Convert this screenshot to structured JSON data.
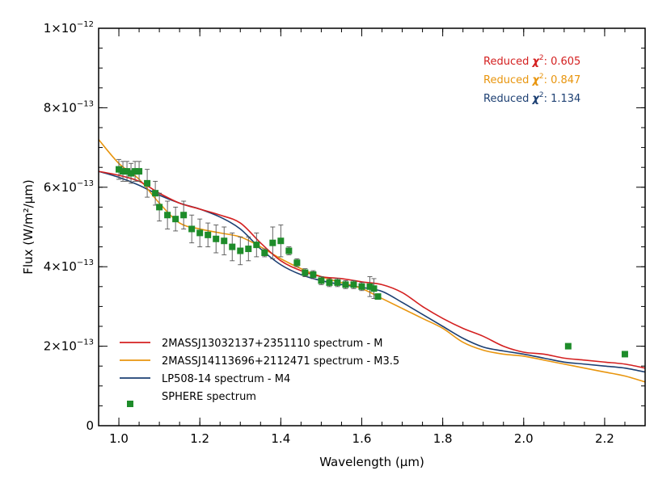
{
  "chart_data": {
    "type": "line",
    "xlabel": "Wavelength (μm)",
    "ylabel": "Flux (W/m²/μm)",
    "xlim": [
      0.95,
      2.3
    ],
    "ylim": [
      0,
      1e-12
    ],
    "x_ticks": [
      1.0,
      1.2,
      1.4,
      1.6,
      1.8,
      2.0,
      2.2
    ],
    "x_tick_labels": [
      "1.0",
      "1.2",
      "1.4",
      "1.6",
      "1.8",
      "2.0",
      "2.2"
    ],
    "y_ticks": [
      0,
      2e-13,
      4e-13,
      6e-13,
      8e-13,
      1e-12
    ],
    "y_tick_labels": [
      {
        "base": "0",
        "exp": ""
      },
      {
        "base": "2×10",
        "exp": "−13"
      },
      {
        "base": "4×10",
        "exp": "−13"
      },
      {
        "base": "6×10",
        "exp": "−13"
      },
      {
        "base": "8×10",
        "exp": "−13"
      },
      {
        "base": "1×10",
        "exp": "−12"
      }
    ],
    "series": [
      {
        "name": "2MASSJ13032137+2351110 spectrum - M",
        "color": "#d42020",
        "x": [
          0.95,
          1.0,
          1.05,
          1.1,
          1.15,
          1.2,
          1.25,
          1.3,
          1.35,
          1.4,
          1.45,
          1.5,
          1.55,
          1.6,
          1.65,
          1.7,
          1.75,
          1.8,
          1.85,
          1.9,
          1.95,
          2.0,
          2.05,
          2.1,
          2.15,
          2.2,
          2.25,
          2.3
        ],
        "values": [
          6.4e-13,
          6.3e-13,
          6.15e-13,
          5.85e-13,
          5.6e-13,
          5.45e-13,
          5.3e-13,
          5.1e-13,
          4.6e-13,
          4.15e-13,
          3.9e-13,
          3.75e-13,
          3.7e-13,
          3.62e-13,
          3.55e-13,
          3.35e-13,
          3e-13,
          2.7e-13,
          2.45e-13,
          2.25e-13,
          2e-13,
          1.85e-13,
          1.8e-13,
          1.7e-13,
          1.65e-13,
          1.6e-13,
          1.55e-13,
          1.45e-13
        ]
      },
      {
        "name": "2MASSJ14113696+2112471 spectrum - M3.5",
        "color": "#e8950e",
        "x": [
          0.95,
          1.0,
          1.05,
          1.1,
          1.15,
          1.2,
          1.25,
          1.3,
          1.35,
          1.4,
          1.45,
          1.5,
          1.55,
          1.6,
          1.65,
          1.7,
          1.75,
          1.8,
          1.85,
          1.9,
          1.95,
          2.0,
          2.05,
          2.1,
          2.15,
          2.2,
          2.25,
          2.3
        ],
        "values": [
          7.2e-13,
          6.6e-13,
          6.2e-13,
          5.6e-13,
          5.1e-13,
          4.95e-13,
          4.85e-13,
          4.75e-13,
          4.5e-13,
          4.2e-13,
          3.95e-13,
          3.75e-13,
          3.6e-13,
          3.45e-13,
          3.2e-13,
          2.95e-13,
          2.7e-13,
          2.45e-13,
          2.1e-13,
          1.9e-13,
          1.8e-13,
          1.75e-13,
          1.65e-13,
          1.55e-13,
          1.45e-13,
          1.35e-13,
          1.25e-13,
          1.1e-13
        ]
      },
      {
        "name": "LP508-14 spectrum - M4",
        "color": "#1c3f72",
        "x": [
          0.95,
          1.0,
          1.05,
          1.1,
          1.15,
          1.2,
          1.25,
          1.3,
          1.35,
          1.4,
          1.45,
          1.5,
          1.55,
          1.6,
          1.65,
          1.7,
          1.75,
          1.8,
          1.85,
          1.9,
          1.95,
          2.0,
          2.05,
          2.1,
          2.15,
          2.2,
          2.25,
          2.3
        ],
        "values": [
          6.4e-13,
          6.25e-13,
          6.05e-13,
          5.8e-13,
          5.6e-13,
          5.45e-13,
          5.25e-13,
          4.95e-13,
          4.45e-13,
          4.05e-13,
          3.8e-13,
          3.65e-13,
          3.55e-13,
          3.48e-13,
          3.38e-13,
          3.1e-13,
          2.8e-13,
          2.5e-13,
          2.2e-13,
          1.98e-13,
          1.88e-13,
          1.8e-13,
          1.7e-13,
          1.6e-13,
          1.55e-13,
          1.5e-13,
          1.45e-13,
          1.35e-13
        ]
      },
      {
        "name": "SPHERE spectrum",
        "type": "scatter",
        "color": "#1e8c2a",
        "x": [
          1.0,
          1.01,
          1.02,
          1.03,
          1.04,
          1.05,
          1.07,
          1.09,
          1.1,
          1.12,
          1.14,
          1.16,
          1.18,
          1.2,
          1.22,
          1.24,
          1.26,
          1.28,
          1.3,
          1.32,
          1.34,
          1.36,
          1.38,
          1.4,
          1.42,
          1.44,
          1.46,
          1.48,
          1.5,
          1.52,
          1.54,
          1.56,
          1.58,
          1.6,
          1.62,
          1.63,
          1.64,
          2.11,
          2.25
        ],
        "values": [
          6.45e-13,
          6.4e-13,
          6.4e-13,
          6.35e-13,
          6.4e-13,
          6.4e-13,
          6.1e-13,
          5.85e-13,
          5.5e-13,
          5.3e-13,
          5.2e-13,
          5.3e-13,
          4.95e-13,
          4.85e-13,
          4.8e-13,
          4.7e-13,
          4.65e-13,
          4.5e-13,
          4.4e-13,
          4.45e-13,
          4.55e-13,
          4.35e-13,
          4.6e-13,
          4.65e-13,
          4.4e-13,
          4.1e-13,
          3.85e-13,
          3.8e-13,
          3.65e-13,
          3.6e-13,
          3.6e-13,
          3.55e-13,
          3.55e-13,
          3.5e-13,
          3.5e-13,
          3.45e-13,
          3.25e-13,
          2e-13,
          1.8e-13
        ],
        "err": [
          2.5e-14,
          2.5e-14,
          2.5e-14,
          2.5e-14,
          2.5e-14,
          2.5e-14,
          3.5e-14,
          3e-14,
          3.5e-14,
          3.5e-14,
          3e-14,
          3.5e-14,
          3.5e-14,
          3.5e-14,
          3e-14,
          3.5e-14,
          3.5e-14,
          3.5e-14,
          3.5e-14,
          3e-14,
          3e-14,
          1e-14,
          4e-14,
          4e-14,
          1e-14,
          1e-14,
          1e-14,
          1e-14,
          1e-14,
          1e-14,
          1e-14,
          1e-14,
          1e-14,
          1e-14,
          2.5e-14,
          2.5e-14,
          5e-15,
          0.0,
          0.0
        ]
      }
    ],
    "annotations": [
      {
        "text": "Reduced χ²: 0.605",
        "label": "Reduced ",
        "chi": "χ",
        "sup": "2",
        "value": ": 0.605",
        "color": "#d42020"
      },
      {
        "text": "Reduced χ²: 0.847",
        "label": "Reduced ",
        "chi": "χ",
        "sup": "2",
        "value": ": 0.847",
        "color": "#e8950e"
      },
      {
        "text": "Reduced χ²: 1.134",
        "label": "Reduced ",
        "chi": "χ",
        "sup": "2",
        "value": ": 1.134",
        "color": "#1c3f72"
      }
    ],
    "legend_position": "bottom-left"
  }
}
